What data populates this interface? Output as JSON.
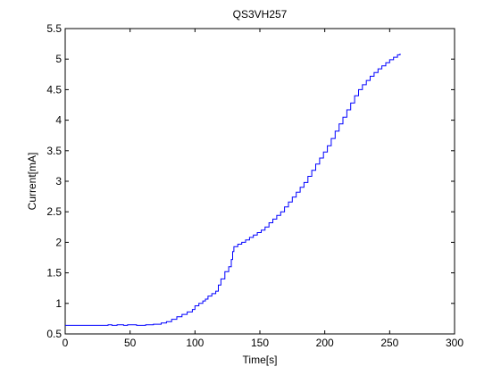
{
  "chart_data": {
    "type": "line",
    "title": "QS3VH257",
    "xlabel": "Time[s]",
    "ylabel": "Current[mA]",
    "xlim": [
      0,
      300
    ],
    "ylim": [
      0.5,
      5.5
    ],
    "x_ticks": [
      0,
      50,
      100,
      150,
      200,
      250,
      300
    ],
    "y_ticks": [
      0.5,
      1,
      1.5,
      2,
      2.5,
      3,
      3.5,
      4,
      4.5,
      5,
      5.5
    ],
    "x_tick_labels": [
      "0",
      "50",
      "100",
      "150",
      "200",
      "250",
      "300"
    ],
    "y_tick_labels": [
      "0.5",
      "1",
      "1.5",
      "2",
      "2.5",
      "3",
      "3.5",
      "4",
      "4.5",
      "5",
      "5.5"
    ],
    "grid": false,
    "line_color": "#0000ff",
    "series": [
      {
        "x": [
          0,
          30,
          33,
          36,
          40,
          45,
          48,
          55,
          62,
          68,
          74,
          78,
          82,
          86,
          90,
          94,
          98,
          100,
          103,
          106,
          108,
          110,
          113,
          116,
          118,
          120,
          123,
          126,
          128,
          129,
          130,
          133,
          136,
          139,
          142,
          145,
          148,
          151,
          154,
          157,
          160,
          163,
          166,
          169,
          172,
          175,
          178,
          181,
          184,
          187,
          190,
          193,
          196,
          199,
          202,
          205,
          208,
          211,
          214,
          217,
          220,
          223,
          226,
          229,
          232,
          235,
          238,
          241,
          244,
          247,
          250,
          253,
          256,
          258
        ],
        "y": [
          0.64,
          0.64,
          0.65,
          0.64,
          0.65,
          0.64,
          0.65,
          0.64,
          0.65,
          0.66,
          0.68,
          0.7,
          0.74,
          0.78,
          0.82,
          0.86,
          0.9,
          0.96,
          1.0,
          1.04,
          1.07,
          1.12,
          1.16,
          1.2,
          1.3,
          1.4,
          1.52,
          1.6,
          1.72,
          1.85,
          1.93,
          1.97,
          2.0,
          2.04,
          2.08,
          2.12,
          2.16,
          2.2,
          2.25,
          2.32,
          2.38,
          2.44,
          2.5,
          2.58,
          2.66,
          2.74,
          2.82,
          2.9,
          2.98,
          3.08,
          3.18,
          3.28,
          3.38,
          3.48,
          3.58,
          3.7,
          3.82,
          3.94,
          4.05,
          4.17,
          4.28,
          4.4,
          4.5,
          4.58,
          4.65,
          4.72,
          4.78,
          4.84,
          4.89,
          4.94,
          4.99,
          5.03,
          5.07,
          5.09
        ]
      }
    ]
  }
}
